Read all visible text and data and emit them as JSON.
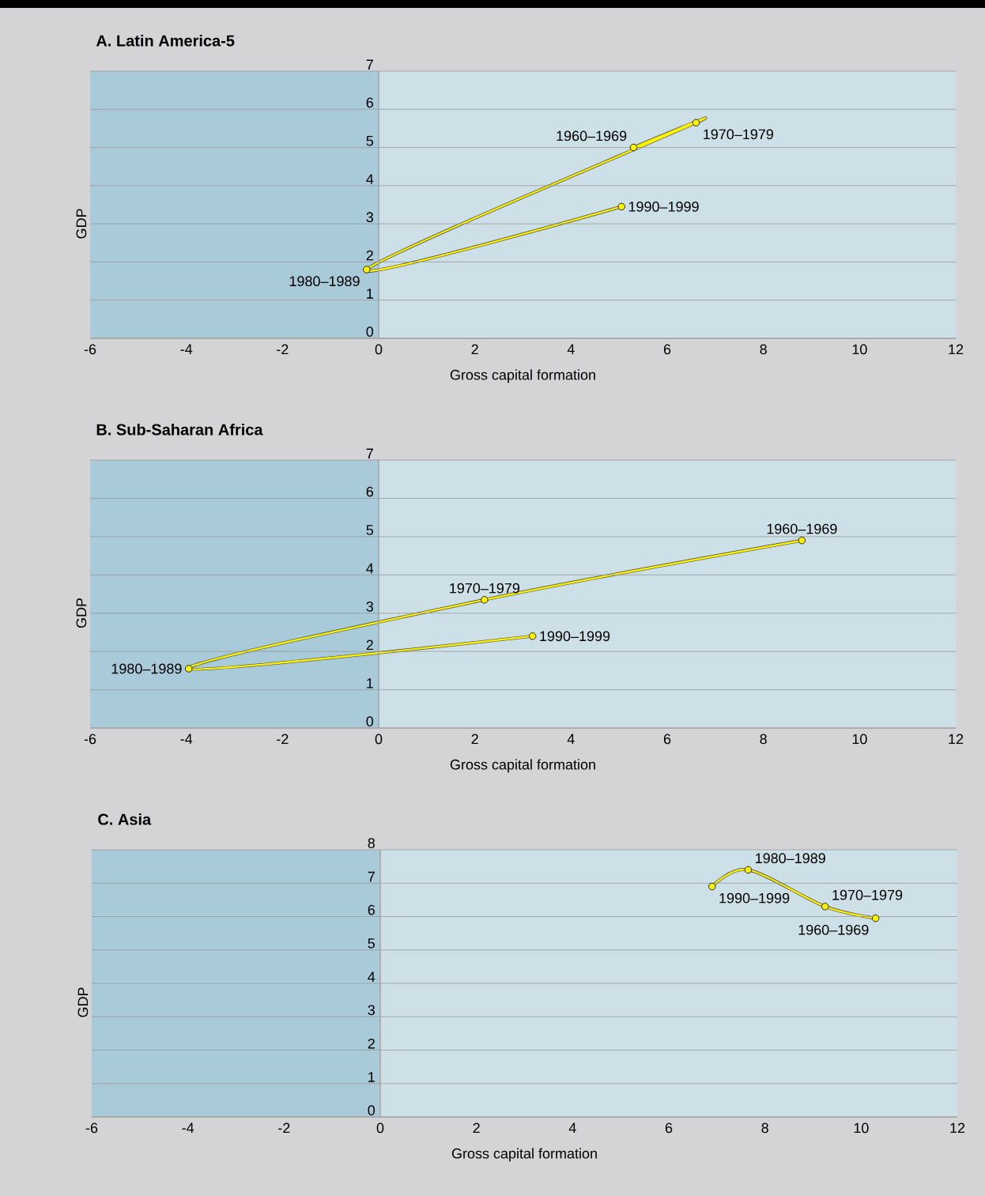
{
  "chart_data": [
    {
      "type": "line",
      "title": "A. Latin America-5",
      "xlabel": "Gross capital formation",
      "ylabel": "GDP",
      "xlim": [
        -6,
        12
      ],
      "ylim": [
        0,
        7
      ],
      "xticks": [
        -6,
        -4,
        -2,
        0,
        2,
        4,
        6,
        8,
        10,
        12
      ],
      "yticks": [
        0,
        1,
        2,
        3,
        4,
        5,
        6,
        7
      ],
      "grid": "y",
      "marker": "circle",
      "bands": [
        {
          "axis": "x",
          "from": -6,
          "to": 0,
          "color": "#a9cad9"
        }
      ],
      "series": [
        {
          "color": "#fff200",
          "x": [
            5.3,
            6.6,
            -0.25,
            5.05
          ],
          "values": [
            5.0,
            5.65,
            1.8,
            3.45
          ]
        }
      ],
      "annotations": [
        {
          "text": "1960–1969",
          "x": 5.3,
          "y": 5.0
        },
        {
          "text": "1970–1979",
          "x": 6.6,
          "y": 5.65
        },
        {
          "text": "1980–1989",
          "x": -0.25,
          "y": 1.8
        },
        {
          "text": "1990–1999",
          "x": 5.05,
          "y": 3.45
        }
      ]
    },
    {
      "type": "line",
      "title": "B. Sub-Saharan Africa",
      "xlabel": "Gross capital formation",
      "ylabel": "GDP",
      "xlim": [
        -6,
        12
      ],
      "ylim": [
        0,
        7
      ],
      "xticks": [
        -6,
        -4,
        -2,
        0,
        2,
        4,
        6,
        8,
        10,
        12
      ],
      "yticks": [
        0,
        1,
        2,
        3,
        4,
        5,
        6,
        7
      ],
      "grid": "y",
      "marker": "circle",
      "bands": [
        {
          "axis": "x",
          "from": -6,
          "to": 0,
          "color": "#a9cad9"
        }
      ],
      "series": [
        {
          "color": "#fff200",
          "x": [
            8.8,
            2.2,
            -3.95,
            3.2
          ],
          "values": [
            4.9,
            3.35,
            1.55,
            2.4
          ]
        }
      ],
      "annotations": [
        {
          "text": "1960–1969",
          "x": 8.8,
          "y": 4.9
        },
        {
          "text": "1970–1979",
          "x": 2.2,
          "y": 3.35
        },
        {
          "text": "1980–1989",
          "x": -3.95,
          "y": 1.55
        },
        {
          "text": "1990–1999",
          "x": 3.2,
          "y": 2.4
        }
      ]
    },
    {
      "type": "line",
      "title": "C. Asia",
      "xlabel": "Gross capital formation",
      "ylabel": "GDP",
      "xlim": [
        -6,
        12
      ],
      "ylim": [
        0,
        8
      ],
      "xticks": [
        -6,
        -4,
        -2,
        0,
        2,
        4,
        6,
        8,
        10,
        12
      ],
      "yticks": [
        0,
        1,
        2,
        3,
        4,
        5,
        6,
        7,
        8
      ],
      "grid": "y",
      "marker": "circle",
      "bands": [
        {
          "axis": "x",
          "from": -6,
          "to": 0,
          "color": "#a9cad9"
        }
      ],
      "series": [
        {
          "color": "#fff200",
          "x": [
            10.3,
            9.25,
            7.65,
            6.9
          ],
          "values": [
            5.95,
            6.3,
            7.4,
            6.9
          ]
        }
      ],
      "annotations": [
        {
          "text": "1960–1969",
          "x": 10.3,
          "y": 5.95
        },
        {
          "text": "1970–1979",
          "x": 9.25,
          "y": 6.3
        },
        {
          "text": "1980–1989",
          "x": 7.65,
          "y": 7.4
        },
        {
          "text": "1990–1999",
          "x": 6.9,
          "y": 6.9
        }
      ]
    }
  ]
}
